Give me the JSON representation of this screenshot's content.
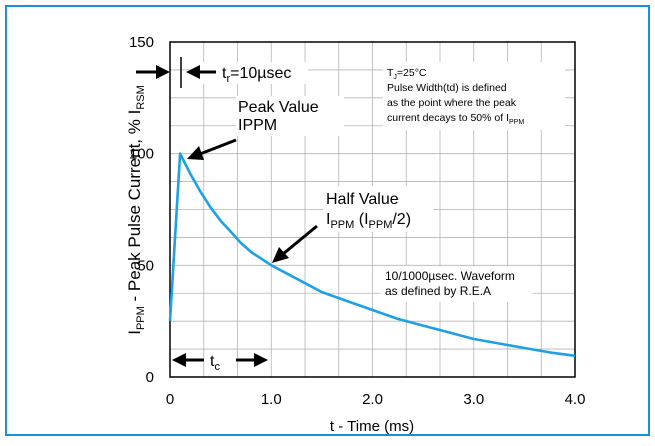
{
  "chart_data": {
    "type": "line",
    "xlabel": "t - Time (ms)",
    "ylabel": {
      "main": "I",
      "sub1": "PPM",
      "middle": " - Peak Pulse Current, % I",
      "sub2": "RSM"
    },
    "xlim": [
      0,
      4.0
    ],
    "ylim": [
      0,
      150
    ],
    "x_ticks": [
      0,
      1.0,
      2.0,
      3.0,
      4.0
    ],
    "x_tick_labels": [
      "0",
      "1.0",
      "2.0",
      "3.0",
      "4.0"
    ],
    "y_ticks": [
      0,
      50,
      100,
      150
    ],
    "y_tick_labels": [
      "0",
      "50",
      "100",
      "150"
    ],
    "grid": true,
    "series": [
      {
        "color": "#1ea0e6",
        "x": [
          0,
          0.1,
          0.2,
          0.3,
          0.4,
          0.5,
          0.6,
          0.7,
          0.8,
          0.9,
          1.0,
          1.25,
          1.5,
          1.75,
          2.0,
          2.25,
          2.5,
          2.75,
          3.0,
          3.25,
          3.5,
          3.75,
          4.0
        ],
        "y": [
          25,
          100,
          91,
          83,
          76,
          70,
          65,
          60,
          56,
          53,
          50,
          44,
          38,
          34,
          30,
          26,
          23,
          20,
          17,
          15,
          13,
          11,
          9.5
        ]
      }
    ],
    "annotations": {
      "tr": {
        "main": "t",
        "sub": "r",
        "rest": "=10µsec"
      },
      "peak_line1": "Peak Value",
      "peak_line2": "IPPM",
      "half_line1": "Half Value",
      "half_line2": {
        "a": "I",
        "b": "PPM",
        "c": " (I",
        "d": "PPM",
        "e": "/2)"
      },
      "tc": {
        "main": "t",
        "sub": "c"
      },
      "note1": {
        "a": "T",
        "b": "J",
        "c": "=25°C"
      },
      "note2": "Pulse Width(td) is defined",
      "note3": "as the point where the peak",
      "note4": {
        "a": "current decays to 50% of I",
        "b": "PPM"
      },
      "wave1": "10/1000µsec. Waveform",
      "wave2": "as defined by R.E.A"
    }
  },
  "colors": {
    "border": "#1e8fd2",
    "curve": "#1ea0e6"
  }
}
